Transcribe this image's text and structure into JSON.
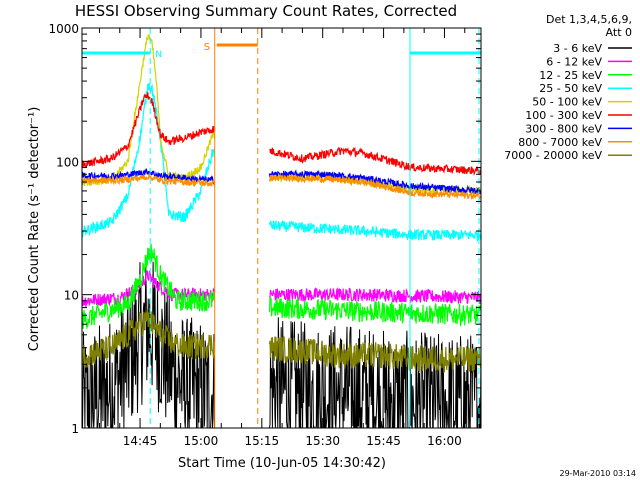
{
  "chart_data": {
    "type": "line",
    "title": "HESSI Observing Summary Count Rates, Corrected",
    "xlabel": "Start Time (10-Jun-05 14:30:42)",
    "ylabel": "Corrected Count Rate (s⁻¹ detector⁻¹)",
    "yscale": "log",
    "ylim": [
      1,
      1000
    ],
    "xlim_min": [
      30.7,
      129
    ],
    "yticks": [
      1,
      10,
      100,
      1000
    ],
    "ytick_labels": [
      "1",
      "10",
      "100",
      "1000"
    ],
    "xticks_min": [
      45,
      60,
      75,
      90,
      105,
      120
    ],
    "xtick_labels": [
      "14:45",
      "15:00",
      "15:15",
      "15:30",
      "15:45",
      "16:00"
    ],
    "legend_title": "Det 1,3,4,5,6,9,",
    "legend_subtitle": "Att 0",
    "timestamp": "29-Mar-2010 03:14",
    "gap": {
      "start": 63.4,
      "end": 76.9
    },
    "attenuator_bar": {
      "start": 63.4,
      "end": 74.0,
      "value": 650,
      "label": "S"
    },
    "saa_bars": [
      {
        "start": 30.7,
        "end": 47.5,
        "value": 650
      },
      {
        "start": 111.5,
        "end": 129,
        "value": 650
      }
    ],
    "saa_marker_label": "N",
    "vertical_markers": [
      {
        "t": 47.5,
        "style": "dashed",
        "color": "#00ffff"
      },
      {
        "t": 63.4,
        "style": "solid",
        "color": "#ff7f00"
      },
      {
        "t": 74.0,
        "style": "dashed",
        "color": "#ff7f00"
      },
      {
        "t": 111.5,
        "style": "solid",
        "color": "#00ffff"
      },
      {
        "t": 128.5,
        "style": "dashed",
        "color": "#00ffff"
      }
    ],
    "series": [
      {
        "name": "3 - 6 keV",
        "color": "#000000",
        "noise": 0.55,
        "points": [
          [
            31,
            1.5
          ],
          [
            38,
            2.0
          ],
          [
            42,
            3.0
          ],
          [
            45,
            5.0
          ],
          [
            47,
            6.0
          ],
          [
            49,
            5.0
          ],
          [
            52,
            3.0
          ],
          [
            56,
            2.0
          ],
          [
            62,
            1.8
          ],
          [
            77,
            2.0
          ],
          [
            85,
            1.8
          ],
          [
            95,
            1.8
          ],
          [
            105,
            1.6
          ],
          [
            112,
            1.5
          ],
          [
            129,
            1.5
          ]
        ]
      },
      {
        "name": "6 - 12 keV",
        "color": "#ff00ff",
        "noise": 0.05,
        "points": [
          [
            31,
            9.0
          ],
          [
            40,
            9.5
          ],
          [
            44,
            11
          ],
          [
            47,
            14
          ],
          [
            49,
            12
          ],
          [
            53,
            10
          ],
          [
            63,
            10
          ],
          [
            77,
            10
          ],
          [
            100,
            10
          ],
          [
            129,
            9.5
          ]
        ]
      },
      {
        "name": "12 - 25 keV",
        "color": "#00ff00",
        "noise": 0.08,
        "points": [
          [
            31,
            6.5
          ],
          [
            42,
            8.5
          ],
          [
            45,
            13
          ],
          [
            47,
            20
          ],
          [
            48,
            21
          ],
          [
            50,
            14
          ],
          [
            54,
            9
          ],
          [
            63,
            9
          ],
          [
            77,
            8
          ],
          [
            100,
            7.5
          ],
          [
            129,
            7
          ]
        ]
      },
      {
        "name": "25 - 50 keV",
        "color": "#00ffff",
        "noise": 0.04,
        "points": [
          [
            31,
            30
          ],
          [
            38,
            35
          ],
          [
            42,
            55
          ],
          [
            45,
            150
          ],
          [
            47,
            380
          ],
          [
            48,
            350
          ],
          [
            50,
            150
          ],
          [
            52,
            40
          ],
          [
            56,
            38
          ],
          [
            60,
            60
          ],
          [
            63,
            120
          ],
          [
            77,
            33
          ],
          [
            100,
            30
          ],
          [
            112,
            28
          ],
          [
            129,
            28
          ]
        ]
      },
      {
        "name": "50 - 100 keV",
        "color": "#d2d200",
        "noise": 0.03,
        "points": [
          [
            31,
            70
          ],
          [
            38,
            72
          ],
          [
            42,
            100
          ],
          [
            44,
            250
          ],
          [
            46,
            620
          ],
          [
            47,
            900
          ],
          [
            48,
            750
          ],
          [
            49,
            400
          ],
          [
            50,
            150
          ],
          [
            52,
            78
          ],
          [
            56,
            75
          ],
          [
            60,
            90
          ],
          [
            63,
            160
          ],
          [
            77,
            75
          ],
          [
            90,
            78
          ],
          [
            100,
            70
          ],
          [
            112,
            62
          ],
          [
            129,
            60
          ]
        ]
      },
      {
        "name": "100 - 300 keV",
        "color": "#ff0000",
        "noise": 0.03,
        "points": [
          [
            31,
            95
          ],
          [
            38,
            105
          ],
          [
            42,
            130
          ],
          [
            44,
            200
          ],
          [
            46,
            300
          ],
          [
            47,
            310
          ],
          [
            48,
            280
          ],
          [
            50,
            160
          ],
          [
            52,
            140
          ],
          [
            56,
            150
          ],
          [
            60,
            165
          ],
          [
            63,
            175
          ],
          [
            77,
            120
          ],
          [
            85,
            105
          ],
          [
            95,
            120
          ],
          [
            100,
            115
          ],
          [
            112,
            90
          ],
          [
            129,
            85
          ]
        ]
      },
      {
        "name": "300 - 800 keV",
        "color": "#0000ff",
        "noise": 0.025,
        "points": [
          [
            31,
            78
          ],
          [
            40,
            78
          ],
          [
            45,
            82
          ],
          [
            47,
            84
          ],
          [
            50,
            78
          ],
          [
            56,
            75
          ],
          [
            63,
            72
          ],
          [
            77,
            80
          ],
          [
            90,
            80
          ],
          [
            100,
            75
          ],
          [
            112,
            65
          ],
          [
            129,
            60
          ]
        ]
      },
      {
        "name": "800 - 7000 keV",
        "color": "#ff8c00",
        "noise": 0.025,
        "points": [
          [
            31,
            72
          ],
          [
            40,
            72
          ],
          [
            45,
            75
          ],
          [
            47,
            77
          ],
          [
            50,
            72
          ],
          [
            56,
            70
          ],
          [
            63,
            68
          ],
          [
            77,
            75
          ],
          [
            90,
            74
          ],
          [
            100,
            70
          ],
          [
            112,
            58
          ],
          [
            129,
            55
          ]
        ]
      },
      {
        "name": "7000 - 20000 keV",
        "color": "#808000",
        "noise": 0.1,
        "points": [
          [
            31,
            3.5
          ],
          [
            38,
            4.0
          ],
          [
            42,
            5.0
          ],
          [
            45,
            6.0
          ],
          [
            47,
            6.5
          ],
          [
            49,
            5.5
          ],
          [
            52,
            4.5
          ],
          [
            56,
            4.0
          ],
          [
            62,
            4.2
          ],
          [
            77,
            4.0
          ],
          [
            85,
            3.8
          ],
          [
            95,
            3.5
          ],
          [
            105,
            3.5
          ],
          [
            112,
            3.3
          ],
          [
            129,
            3.3
          ]
        ]
      }
    ]
  }
}
